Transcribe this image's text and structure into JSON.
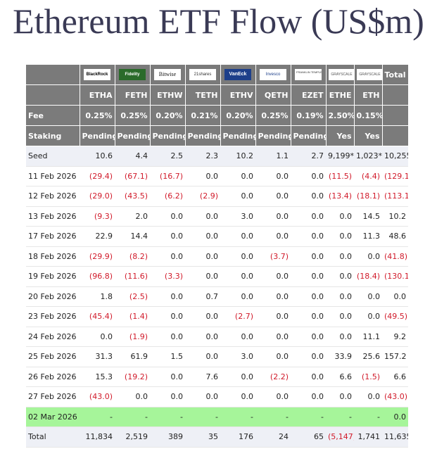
{
  "title": "Ethereum ETF Flow (US$m)",
  "logos": [
    {
      "name": "blackrock-logo",
      "text": "BlackRock"
    },
    {
      "name": "fidelity-logo",
      "text": "Fidelity"
    },
    {
      "name": "bitwise-logo",
      "text": "Bitwise"
    },
    {
      "name": "21shares-logo",
      "text": "21shares"
    },
    {
      "name": "vaneck-logo",
      "text": "VanEck"
    },
    {
      "name": "invesco-logo",
      "text": "Invesco"
    },
    {
      "name": "franklin-templeton-logo",
      "text": "FRANKLIN TEMPLETON"
    },
    {
      "name": "grayscale-logo-ethe",
      "text": "GRAYSCALE"
    },
    {
      "name": "grayscale-logo-eth",
      "text": "GRAYSCALE"
    }
  ],
  "total_header": "Total",
  "tickers": [
    "ETHA",
    "FETH",
    "ETHW",
    "TETH",
    "ETHV",
    "QETH",
    "EZET",
    "ETHE",
    "ETH"
  ],
  "fee": {
    "label": "Fee",
    "values": [
      "0.25%",
      "0.25%",
      "0.20%",
      "0.21%",
      "0.20%",
      "0.25%",
      "0.19%",
      "2.50%",
      "0.15%"
    ]
  },
  "staking": {
    "label": "Staking",
    "values": [
      "Pending",
      "Pending",
      "Pending",
      "Pending",
      "Pending",
      "Pending",
      "Pending",
      "Yes",
      "Yes"
    ]
  },
  "rows": [
    {
      "label": "Seed",
      "values": [
        "10.6",
        "4.4",
        "2.5",
        "2.3",
        "10.2",
        "1.1",
        "2.7",
        "9,199*",
        "1,023*",
        "10,255"
      ],
      "style": "seed"
    },
    {
      "label": "11 Feb 2026",
      "values": [
        "(29.4)",
        "(67.1)",
        "(16.7)",
        "0.0",
        "0.0",
        "0.0",
        "0.0",
        "(11.5)",
        "(4.4)",
        "(129.1)"
      ]
    },
    {
      "label": "12 Feb 2026",
      "values": [
        "(29.0)",
        "(43.5)",
        "(6.2)",
        "(2.9)",
        "0.0",
        "0.0",
        "0.0",
        "(13.4)",
        "(18.1)",
        "(113.1)"
      ]
    },
    {
      "label": "13 Feb 2026",
      "values": [
        "(9.3)",
        "2.0",
        "0.0",
        "0.0",
        "3.0",
        "0.0",
        "0.0",
        "0.0",
        "14.5",
        "10.2"
      ]
    },
    {
      "label": "17 Feb 2026",
      "values": [
        "22.9",
        "14.4",
        "0.0",
        "0.0",
        "0.0",
        "0.0",
        "0.0",
        "0.0",
        "11.3",
        "48.6"
      ]
    },
    {
      "label": "18 Feb 2026",
      "values": [
        "(29.9)",
        "(8.2)",
        "0.0",
        "0.0",
        "0.0",
        "(3.7)",
        "0.0",
        "0.0",
        "0.0",
        "(41.8)"
      ]
    },
    {
      "label": "19 Feb 2026",
      "values": [
        "(96.8)",
        "(11.6)",
        "(3.3)",
        "0.0",
        "0.0",
        "0.0",
        "0.0",
        "0.0",
        "(18.4)",
        "(130.1)"
      ]
    },
    {
      "label": "20 Feb 2026",
      "values": [
        "1.8",
        "(2.5)",
        "0.0",
        "0.7",
        "0.0",
        "0.0",
        "0.0",
        "0.0",
        "0.0",
        "0.0"
      ]
    },
    {
      "label": "23 Feb 2026",
      "values": [
        "(45.4)",
        "(1.4)",
        "0.0",
        "0.0",
        "(2.7)",
        "0.0",
        "0.0",
        "0.0",
        "0.0",
        "(49.5)"
      ]
    },
    {
      "label": "24 Feb 2026",
      "values": [
        "0.0",
        "(1.9)",
        "0.0",
        "0.0",
        "0.0",
        "0.0",
        "0.0",
        "0.0",
        "11.1",
        "9.2"
      ]
    },
    {
      "label": "25 Feb 2026",
      "values": [
        "31.3",
        "61.9",
        "1.5",
        "0.0",
        "3.0",
        "0.0",
        "0.0",
        "33.9",
        "25.6",
        "157.2"
      ]
    },
    {
      "label": "26 Feb 2026",
      "values": [
        "15.3",
        "(19.2)",
        "0.0",
        "7.6",
        "0.0",
        "(2.2)",
        "0.0",
        "6.6",
        "(1.5)",
        "6.6"
      ]
    },
    {
      "label": "27 Feb 2026",
      "values": [
        "(43.0)",
        "0.0",
        "0.0",
        "0.0",
        "0.0",
        "0.0",
        "0.0",
        "0.0",
        "0.0",
        "(43.0)"
      ]
    },
    {
      "label": "02 Mar 2026",
      "values": [
        "-",
        "-",
        "-",
        "-",
        "-",
        "-",
        "-",
        "-",
        "-",
        "0.0"
      ],
      "style": "highlight"
    },
    {
      "label": "Total",
      "values": [
        "11,834",
        "2,519",
        "389",
        "35",
        "176",
        "24",
        "65",
        "(5,147)",
        "1,741",
        "11,635"
      ],
      "style": "total"
    }
  ],
  "colors": {
    "header_bg": "#7b7b7b",
    "negative": "#d11a2a",
    "highlight": "#a6f59a",
    "seed_bg": "#eef0f6"
  }
}
